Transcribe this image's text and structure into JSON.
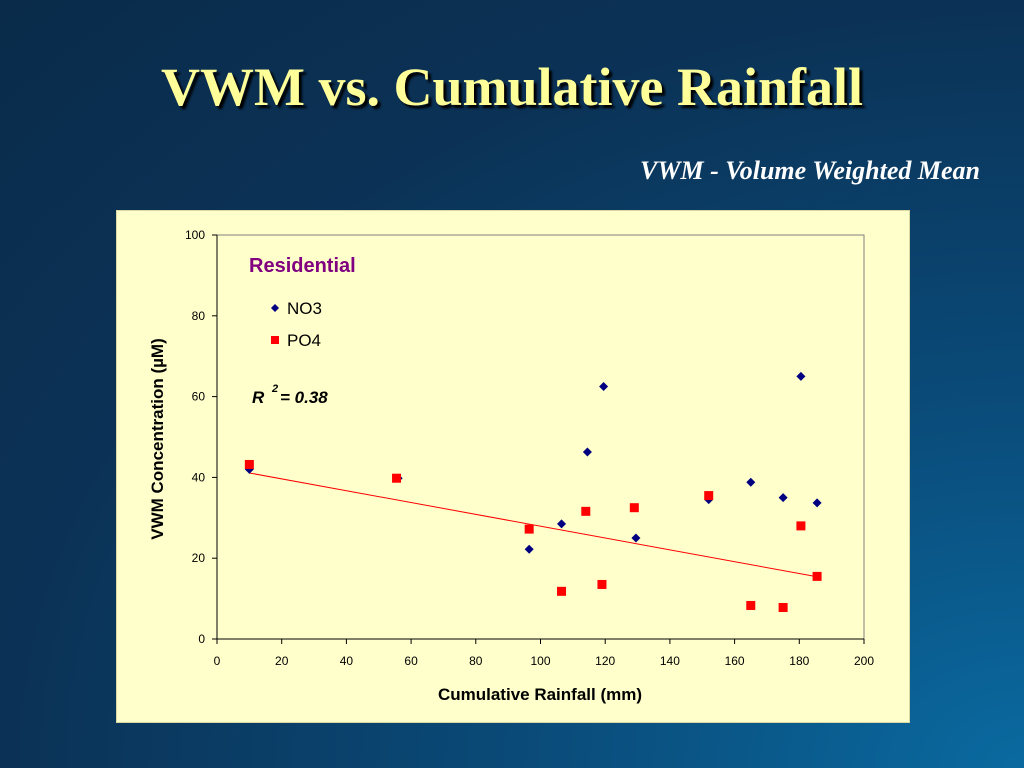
{
  "slide": {
    "title": "VWM vs. Cumulative Rainfall",
    "subtitle": "VWM - Volume Weighted Mean"
  },
  "chart_data": {
    "type": "scatter",
    "title": "Residential",
    "xlabel": "Cumulative Rainfall (mm)",
    "ylabel": "VWM Concentration (µM)",
    "xlim": [
      0,
      200
    ],
    "ylim": [
      0,
      100
    ],
    "x_ticks": [
      "0",
      "20",
      "40",
      "60",
      "80",
      "100",
      "120",
      "140",
      "160",
      "180",
      "200"
    ],
    "y_ticks": [
      "0",
      "20",
      "40",
      "60",
      "80",
      "100"
    ],
    "grid": false,
    "legend_position": "top-left",
    "annotation": {
      "r_label": "R",
      "r_exponent": "2",
      "r_value": " = 0.38"
    },
    "series": [
      {
        "name": "NO3",
        "color": "#000080",
        "marker": "diamond",
        "points": [
          [
            10,
            42
          ],
          [
            56,
            39.8
          ],
          [
            96.5,
            22.2
          ],
          [
            106.5,
            28.5
          ],
          [
            114.5,
            46.3
          ],
          [
            119.5,
            62.5
          ],
          [
            129.5,
            25
          ],
          [
            152,
            34.5
          ],
          [
            165,
            38.8
          ],
          [
            175,
            35
          ],
          [
            180.5,
            65
          ],
          [
            185.5,
            33.7
          ]
        ]
      },
      {
        "name": "PO4",
        "color": "#ff0000",
        "marker": "square",
        "points": [
          [
            10,
            43.2
          ],
          [
            55.5,
            39.8
          ],
          [
            96.5,
            27.2
          ],
          [
            106.5,
            11.8
          ],
          [
            114,
            31.6
          ],
          [
            119,
            13.5
          ],
          [
            129,
            32.5
          ],
          [
            152,
            35.5
          ],
          [
            165,
            8.3
          ],
          [
            175,
            7.8
          ],
          [
            180.5,
            28
          ],
          [
            185.5,
            15.5
          ]
        ]
      }
    ],
    "trendline": {
      "series": "PO4",
      "color": "#ff0000",
      "x": [
        10,
        185.5
      ],
      "y": [
        41.1,
        15.4
      ]
    }
  }
}
